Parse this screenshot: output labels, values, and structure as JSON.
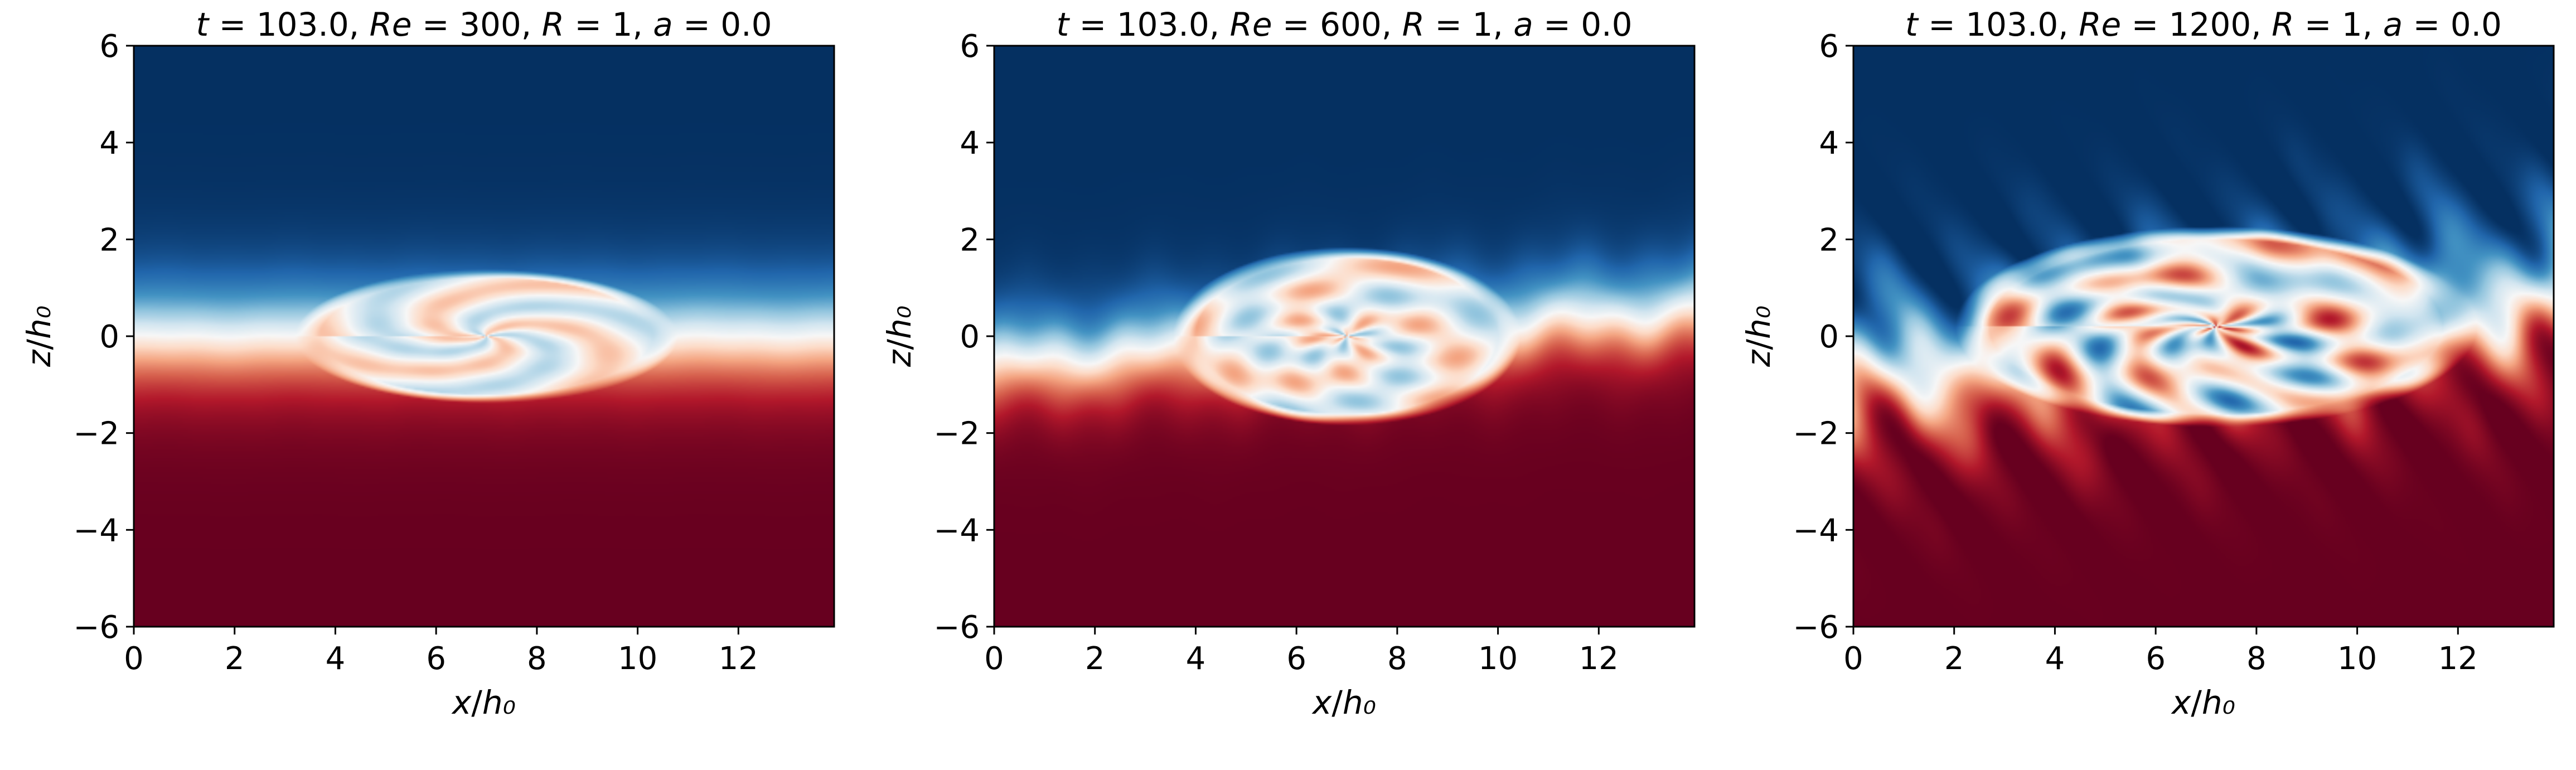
{
  "colormap": [
    "#67001f",
    "#b2182b",
    "#d6604d",
    "#f4a582",
    "#fddbc7",
    "#f7f7f7",
    "#d1e5f0",
    "#92c5de",
    "#4393c3",
    "#2166ac",
    "#053061"
  ],
  "chart_data": [
    {
      "type": "heatmap",
      "title_parts": [
        "t",
        " =  103.0, ",
        "Re",
        " =  300, ",
        "R",
        " =  1, ",
        "a",
        " =  0.0"
      ],
      "xlabel": "x/h₀",
      "ylabel": "z/h₀",
      "xlim": [
        0,
        13.9
      ],
      "ylim": [
        -6,
        6
      ],
      "xticks": [
        0,
        2,
        4,
        6,
        8,
        10,
        12
      ],
      "yticks": [
        -6,
        -4,
        -2,
        0,
        2,
        4,
        6
      ],
      "field": {
        "interface_tilt": 0.0,
        "vortex_center": [
          7.0,
          0.0
        ],
        "vortex_radius": [
          3.3,
          1.2
        ],
        "roughness": 0.05,
        "shear_thickness": 1.2
      },
      "colormap": "RdBu"
    },
    {
      "type": "heatmap",
      "title_parts": [
        "t",
        " =  103.0, ",
        "Re",
        " =  600, ",
        "R",
        " =  1, ",
        "a",
        " =  0.0"
      ],
      "xlabel": "x/h₀",
      "ylabel": "z/h₀",
      "xlim": [
        0,
        13.9
      ],
      "ylim": [
        -6,
        6
      ],
      "xticks": [
        0,
        2,
        4,
        6,
        8,
        10,
        12
      ],
      "yticks": [
        -6,
        -4,
        -2,
        0,
        2,
        4,
        6
      ],
      "field": {
        "interface_tilt": 0.08,
        "vortex_center": [
          7.0,
          0.0
        ],
        "vortex_radius": [
          3.0,
          1.6
        ],
        "roughness": 0.35,
        "shear_thickness": 1.0
      },
      "colormap": "RdBu"
    },
    {
      "type": "heatmap",
      "title_parts": [
        "t",
        " =  103.0, ",
        "Re",
        " =  1200, ",
        "R",
        " =  1, ",
        "a",
        " =  0.0"
      ],
      "xlabel": "x/h₀",
      "ylabel": "z/h₀",
      "xlim": [
        0,
        13.9
      ],
      "ylim": [
        -6,
        6
      ],
      "xticks": [
        0,
        2,
        4,
        6,
        8,
        10,
        12
      ],
      "yticks": [
        -6,
        -4,
        -2,
        0,
        2,
        4,
        6
      ],
      "field": {
        "interface_tilt": 0.12,
        "vortex_center": [
          7.2,
          0.2
        ],
        "vortex_radius": [
          4.5,
          1.8
        ],
        "roughness": 0.8,
        "shear_thickness": 1.3
      },
      "colormap": "RdBu"
    }
  ]
}
